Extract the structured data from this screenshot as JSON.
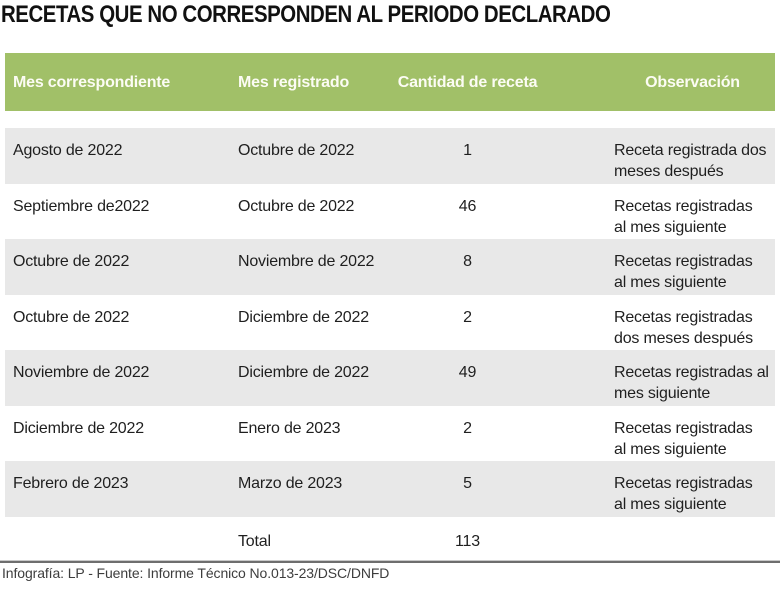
{
  "title": "RECETAS QUE NO CORRESPONDEN AL PERIODO DECLARADO",
  "colors": {
    "header_bg": "#a1c068",
    "stripe_bg": "#e8e8e8",
    "header_text": "#fcfcf4"
  },
  "table": {
    "columns": [
      "Mes correspondiente",
      "Mes registrado",
      "Cantidad de receta",
      "Observación"
    ],
    "rows": [
      {
        "mes_correspondiente": "Agosto de 2022",
        "mes_registrado": "Octubre de 2022",
        "cantidad": "1",
        "observacion": "Receta registrada dos\nmeses después"
      },
      {
        "mes_correspondiente": "Septiembre de2022",
        "mes_registrado": "Octubre de 2022",
        "cantidad": "46",
        "observacion": "Recetas registradas\nal mes siguiente"
      },
      {
        "mes_correspondiente": "Octubre de 2022",
        "mes_registrado": "Noviembre de 2022",
        "cantidad": "8",
        "observacion": "Recetas registradas\nal mes siguiente"
      },
      {
        "mes_correspondiente": "Octubre de 2022",
        "mes_registrado": "Diciembre de 2022",
        "cantidad": "2",
        "observacion": "Recetas registradas\ndos meses después"
      },
      {
        "mes_correspondiente": "Noviembre de 2022",
        "mes_registrado": "Diciembre de 2022",
        "cantidad": "49",
        "observacion": "Recetas registradas al\nmes siguiente"
      },
      {
        "mes_correspondiente": "Diciembre de 2022",
        "mes_registrado": "Enero de 2023",
        "cantidad": "2",
        "observacion": "Recetas registradas\nal mes siguiente"
      },
      {
        "mes_correspondiente": "Febrero de 2023",
        "mes_registrado": "Marzo de 2023",
        "cantidad": "5",
        "observacion": "Recetas registradas\nal mes siguiente"
      }
    ],
    "total": {
      "label": "Total",
      "value": "113"
    }
  },
  "footer": {
    "credit": "Infografía: LP - Fuente: Informe Técnico No.013-23/DSC/DNFD"
  },
  "chart_data": {
    "type": "table",
    "title": "RECETAS QUE NO CORRESPONDEN AL PERIODO DECLARADO",
    "columns": [
      "Mes correspondiente",
      "Mes registrado",
      "Cantidad de receta",
      "Observación"
    ],
    "rows": [
      [
        "Agosto de 2022",
        "Octubre de 2022",
        1,
        "Receta registrada dos meses después"
      ],
      [
        "Septiembre de2022",
        "Octubre de 2022",
        46,
        "Recetas registradas al mes siguiente"
      ],
      [
        "Octubre de 2022",
        "Noviembre de 2022",
        8,
        "Recetas registradas al mes siguiente"
      ],
      [
        "Octubre de 2022",
        "Diciembre de 2022",
        2,
        "Recetas registradas dos meses después"
      ],
      [
        "Noviembre de 2022",
        "Diciembre de 2022",
        49,
        "Recetas registradas al mes siguiente"
      ],
      [
        "Diciembre de 2022",
        "Enero de 2023",
        2,
        "Recetas registradas al mes siguiente"
      ],
      [
        "Febrero de 2023",
        "Marzo de 2023",
        5,
        "Recetas registradas al mes siguiente"
      ]
    ],
    "total": {
      "label": "Total",
      "cantidad": 113
    },
    "source": "Infografía: LP - Fuente: Informe Técnico No.013-23/DSC/DNFD"
  }
}
